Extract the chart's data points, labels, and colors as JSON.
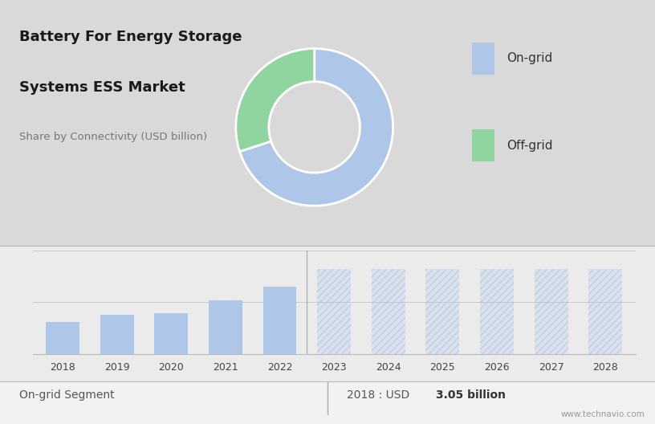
{
  "title_line1": "Battery For Energy Storage",
  "title_line2": "Systems ESS Market",
  "subtitle": "Share by Connectivity (USD billion)",
  "donut_values": [
    70,
    30
  ],
  "donut_colors": [
    "#aec6e8",
    "#90d4a0"
  ],
  "donut_labels": [
    "On-grid",
    "Off-grid"
  ],
  "bar_years": [
    2018,
    2019,
    2020,
    2021,
    2022
  ],
  "bar_values": [
    3.05,
    3.8,
    3.9,
    5.2,
    6.5
  ],
  "forecast_years": [
    2023,
    2024,
    2025,
    2026,
    2027,
    2028
  ],
  "forecast_value": 8.2,
  "bar_color": "#aec6e8",
  "forecast_color": "#aec6e8",
  "bg_top": "#d9d9d9",
  "bg_bottom": "#ebebeb",
  "bg_strip": "#f2f2f2",
  "bottom_label": "On-grid Segment",
  "bottom_value_normal": "2018 : USD ",
  "bottom_value_bold": "3.05 billion",
  "watermark": "www.technavio.com",
  "legend_labels": [
    "On-grid",
    "Off-grid"
  ],
  "legend_colors": [
    "#aec6e8",
    "#90d4a0"
  ],
  "divider_color": "#bbbbbb",
  "grid_color": "#c8c8c8"
}
